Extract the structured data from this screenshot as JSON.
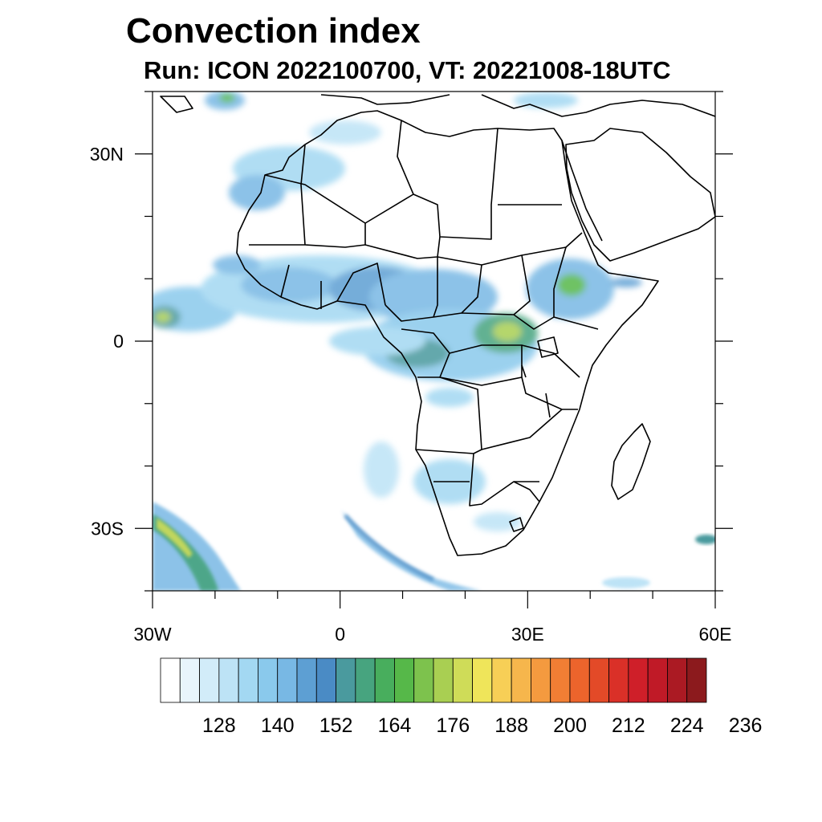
{
  "title": "Convection index",
  "subtitle": "Run: ICON 2022100700,  VT: 20221008-18UTC",
  "map": {
    "region": "Africa",
    "projection": "lat-lon",
    "lon_range": [
      -30,
      60
    ],
    "lat_range": [
      -40,
      40
    ],
    "lat_tick_labels": [
      {
        "lat": 30,
        "label": "30N"
      },
      {
        "lat": 0,
        "label": "0"
      },
      {
        "lat": -30,
        "label": "30S"
      }
    ],
    "lon_tick_labels": [
      {
        "lon": -30,
        "label": "30W"
      },
      {
        "lon": 0,
        "label": "0"
      },
      {
        "lon": 30,
        "label": "30E"
      },
      {
        "lon": 60,
        "label": "60E"
      }
    ],
    "colors": {
      "land_outline": "#000000",
      "frame": "#000000"
    }
  },
  "colorbar": {
    "colors": [
      "#ffffff",
      "#e8f5fc",
      "#d2ecf9",
      "#bde3f6",
      "#a3d8f2",
      "#8ac9ec",
      "#78b8e4",
      "#5d9fd3",
      "#4a8bc5",
      "#4a9a9e",
      "#47a47f",
      "#48ae5d",
      "#56b849",
      "#7dc24d",
      "#a9cf52",
      "#cfdc58",
      "#efe55a",
      "#f7cf56",
      "#f6b64c",
      "#f49a3f",
      "#f17e34",
      "#ec642c",
      "#e34a28",
      "#da3028",
      "#cf1f29",
      "#c01a27",
      "#ab1a23",
      "#8c1a1d"
    ],
    "labels": [
      "128",
      "140",
      "152",
      "164",
      "176",
      "188",
      "200",
      "212",
      "224",
      "236"
    ]
  },
  "fields": {
    "palette_levels": {
      "light": "#bde3f6",
      "mid": "#78b8e4",
      "blue": "#4a8bc5",
      "teal": "#4a9a9e",
      "green": "#56b849",
      "yellowgreen": "#a9cf52"
    }
  }
}
